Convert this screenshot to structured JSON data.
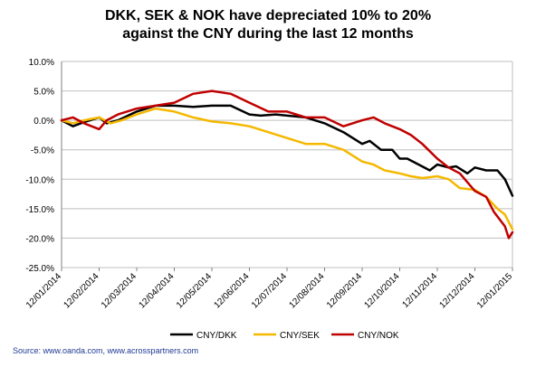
{
  "chart_data": {
    "type": "line",
    "title_lines": [
      "DKK, SEK & NOK have depreciated 10% to 20%",
      "against the CNY during the last 12 months"
    ],
    "xlabel": "",
    "ylabel": "",
    "x_tick_labels": [
      "12/01/2014",
      "12/02/2014",
      "12/03/2014",
      "12/04/2014",
      "12/05/2014",
      "12/06/2014",
      "12/07/2014",
      "12/08/2014",
      "12/09/2014",
      "12/10/2014",
      "12/11/2014",
      "12/12/2014",
      "12/01/2015"
    ],
    "y_tick_labels": [
      "10.0%",
      "5.0%",
      "0.0%",
      "-5.0%",
      "-10.0%",
      "-15.0%",
      "-20.0%",
      "-25.0%"
    ],
    "ylim": [
      -25,
      10
    ],
    "grid": true,
    "legend_position": "bottom",
    "series": [
      {
        "name": "CNY/DKK",
        "color": "#000000",
        "x": [
          0,
          0.3,
          0.6,
          1,
          1.2,
          1.5,
          2,
          2.5,
          3,
          3.5,
          4,
          4.5,
          5,
          5.3,
          5.7,
          6,
          6.5,
          7,
          7.5,
          8,
          8.2,
          8.5,
          8.8,
          9,
          9.2,
          9.5,
          9.8,
          10,
          10.3,
          10.5,
          10.8,
          11,
          11.3,
          11.6,
          11.8,
          12
        ],
        "values": [
          0,
          -1,
          -0.3,
          0.5,
          -0.5,
          0,
          1.5,
          2.5,
          2.5,
          2.3,
          2.5,
          2.5,
          1,
          0.8,
          1,
          0.8,
          0.5,
          -0.5,
          -2,
          -4,
          -3.5,
          -5,
          -5,
          -6.5,
          -6.5,
          -7.5,
          -8.5,
          -7.5,
          -8,
          -7.8,
          -9,
          -8,
          -8.5,
          -8.5,
          -10,
          -12.8
        ]
      },
      {
        "name": "CNY/SEK",
        "color": "#f5b800",
        "x": [
          0,
          0.3,
          0.6,
          1,
          1.3,
          1.6,
          2,
          2.5,
          3,
          3.5,
          4,
          4.5,
          5,
          5.5,
          6,
          6.5,
          7,
          7.5,
          8,
          8.3,
          8.6,
          9,
          9.3,
          9.6,
          10,
          10.3,
          10.6,
          11,
          11.3,
          11.6,
          11.8,
          12
        ],
        "values": [
          0,
          -0.5,
          0,
          0.5,
          -0.5,
          0,
          1,
          2,
          1.5,
          0.5,
          -0.2,
          -0.5,
          -1,
          -2,
          -3,
          -4,
          -4,
          -5,
          -7,
          -7.5,
          -8.5,
          -9,
          -9.5,
          -9.8,
          -9.5,
          -10,
          -11.5,
          -11.8,
          -13,
          -15,
          -16,
          -18.5
        ]
      },
      {
        "name": "CNY/NOK",
        "color": "#c00000",
        "x": [
          0,
          0.3,
          0.6,
          1,
          1.2,
          1.5,
          2,
          2.5,
          3,
          3.5,
          4,
          4.5,
          5,
          5.5,
          6,
          6.5,
          7,
          7.5,
          8,
          8.3,
          8.6,
          9,
          9.3,
          9.6,
          10,
          10.3,
          10.6,
          11,
          11.3,
          11.5,
          11.8,
          11.9,
          12
        ],
        "values": [
          0,
          0.5,
          -0.5,
          -1.5,
          0,
          1,
          2,
          2.5,
          3,
          4.5,
          5,
          4.5,
          3,
          1.5,
          1.5,
          0.5,
          0.5,
          -1,
          0,
          0.5,
          -0.5,
          -1.5,
          -2.5,
          -4,
          -6.5,
          -8,
          -9,
          -12,
          -13,
          -15.5,
          -18,
          -20,
          -19
        ]
      }
    ]
  },
  "source": "Source: www.oanda.com, www.acrosspartners.com"
}
